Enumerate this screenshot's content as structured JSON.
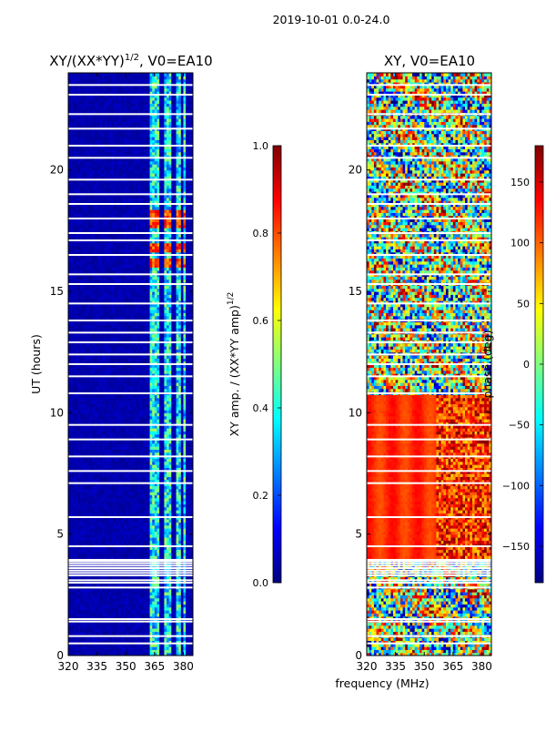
{
  "figure": {
    "suptitle": "2019-10-01 0.0-24.0",
    "shared_xlabel": "frequency (MHz)"
  },
  "chart_data": [
    {
      "type": "heatmap",
      "title": "XY/(XX*YY)",
      "title_sup": "1/2",
      "title_suffix": ", V0=EA10",
      "xlabel": "",
      "ylabel": "UT (hours)",
      "xlim": [
        320,
        385
      ],
      "ylim": [
        0,
        24
      ],
      "xticks": [
        320,
        335,
        350,
        365,
        380
      ],
      "yticks": [
        0,
        5,
        10,
        15,
        20
      ],
      "colormap": "jet",
      "colorbar": {
        "label": "XY amp. / (XX*YY amp)",
        "label_sup": "1/2",
        "range": [
          0.0,
          1.0
        ],
        "ticks": [
          "0.0",
          "0.2",
          "0.4",
          "0.6",
          "0.8",
          "1.0"
        ],
        "tick_values": [
          0.0,
          0.2,
          0.4,
          0.6,
          0.8,
          1.0
        ]
      },
      "description_values": {
        "background_amplitude": 0.02,
        "rfi_channel_ranges_mhz": [
          [
            362,
            366
          ],
          [
            366.5,
            368
          ],
          [
            370,
            374
          ],
          [
            376,
            379
          ],
          [
            379.5,
            381
          ]
        ],
        "hot_rows_ut": [
          16.2,
          16.8,
          17.8,
          18.2
        ],
        "hot_amplitude": 0.9
      },
      "flagged_ut_rows": [
        0.5,
        0.8,
        1.4,
        1.5,
        2.8,
        3.0,
        3.1,
        3.3,
        3.4,
        3.5,
        3.6,
        3.7,
        3.8,
        4.5,
        5.7,
        7.1,
        7.6,
        8.2,
        8.9,
        9.5,
        10.8,
        11.5,
        12.0,
        12.4,
        12.9,
        13.3,
        13.8,
        14.5,
        15.3,
        15.7,
        16.5,
        17.1,
        17.4,
        18.0,
        18.6,
        19.0,
        19.6,
        20.5,
        21.0,
        21.7,
        22.3,
        23.1,
        23.5
      ]
    },
    {
      "type": "heatmap",
      "title": "XY, V0=EA10",
      "xlabel": "",
      "ylabel": "",
      "xlim": [
        320,
        385
      ],
      "ylim": [
        0,
        24
      ],
      "xticks": [
        320,
        335,
        350,
        365,
        380
      ],
      "yticks": [
        0,
        5,
        10,
        15,
        20
      ],
      "colormap": "jet",
      "colorbar": {
        "label": "phase (deg)",
        "range": [
          -180,
          180
        ],
        "ticks": [
          "150",
          "100",
          "50",
          "0",
          "−50",
          "−100",
          "−150"
        ],
        "tick_values": [
          150,
          100,
          50,
          0,
          -50,
          -100,
          -150
        ]
      },
      "description_values": {
        "stable_phase_ut_range": [
          4.0,
          10.8
        ],
        "stable_phase_deg": 120,
        "stripe_freqs_mhz": [
          327,
          340,
          353
        ],
        "noisy_band_start_mhz": 356
      },
      "flagged_ut_rows": [
        0.5,
        0.8,
        1.4,
        1.5,
        2.8,
        3.0,
        3.1,
        3.3,
        3.4,
        3.5,
        3.6,
        3.7,
        3.8,
        4.5,
        5.7,
        7.1,
        7.6,
        8.2,
        8.9,
        9.5,
        10.8,
        11.5,
        12.0,
        12.4,
        12.9,
        13.3,
        13.8,
        14.5,
        15.3,
        15.7,
        16.5,
        17.1,
        17.4,
        18.0,
        18.6,
        19.0,
        19.6,
        20.5,
        21.0,
        21.7,
        22.3,
        23.1,
        23.5
      ]
    }
  ],
  "flagged_ut_gap": [
    3.9,
    4.0
  ]
}
